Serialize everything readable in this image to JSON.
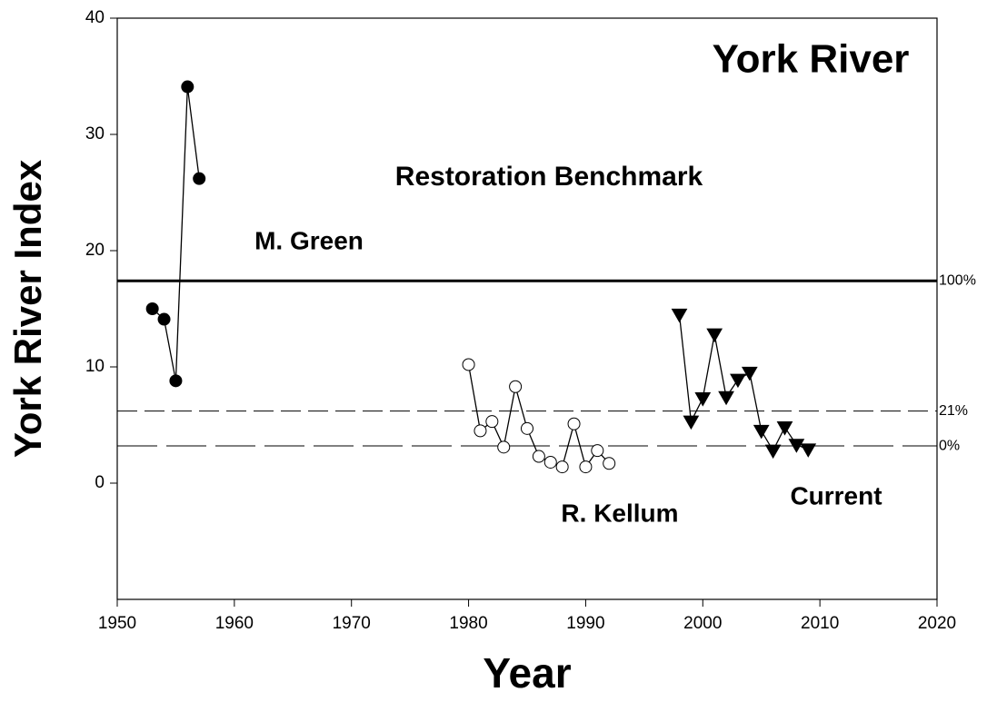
{
  "chart_data": {
    "type": "line",
    "title": "York River",
    "xlabel": "Year",
    "ylabel": "York River Index",
    "xlim": [
      1950,
      2020
    ],
    "xticks": [
      1950,
      1960,
      1970,
      1980,
      1990,
      2000,
      2010,
      2020
    ],
    "ylim": [
      -10,
      40
    ],
    "yticks": [
      0,
      10,
      20,
      30,
      40
    ],
    "grid": false,
    "annotations": [
      "Restoration Benchmark",
      "M. Green",
      "R. Kellum",
      "Current"
    ],
    "series": [
      {
        "color": "#000000",
        "marker": "circle-filled",
        "x": [
          1953,
          1954,
          1955,
          1956,
          1957
        ],
        "values": [
          15.0,
          14.1,
          8.8,
          34.1,
          26.2
        ]
      },
      {
        "color": "#000000",
        "marker": "circle-open",
        "x": [
          1980,
          1981,
          1982,
          1983,
          1984,
          1985,
          1986,
          1987,
          1988,
          1989,
          1990,
          1991,
          1992
        ],
        "values": [
          10.2,
          4.5,
          5.3,
          3.1,
          8.3,
          4.7,
          2.3,
          1.8,
          1.4,
          5.1,
          1.4,
          2.8,
          1.7
        ]
      },
      {
        "color": "#000000",
        "marker": "triangle-down",
        "x": [
          1998,
          1999,
          2000,
          2001,
          2002,
          2003,
          2004,
          2005,
          2006,
          2007,
          2008,
          2009
        ],
        "values": [
          14.5,
          5.3,
          7.3,
          12.8,
          7.4,
          8.9,
          9.5,
          4.5,
          2.8,
          4.8,
          3.3,
          2.9
        ]
      }
    ],
    "hlines": [
      {
        "value": 17.4,
        "label": "100%",
        "style": "solid"
      },
      {
        "value": 6.2,
        "label": "21%",
        "style": "dashed"
      },
      {
        "value": 3.2,
        "label": "0%",
        "style": "long-dashed"
      }
    ]
  }
}
